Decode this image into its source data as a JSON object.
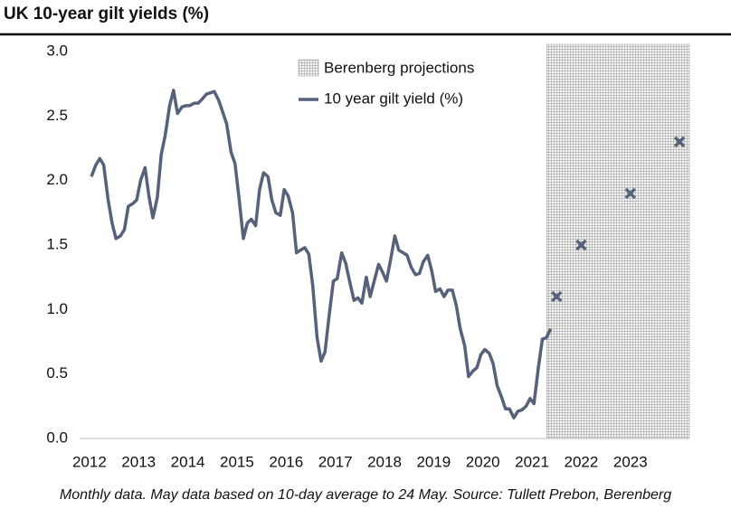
{
  "chart_data": {
    "type": "line",
    "title": "UK 10-year gilt yields (%)",
    "note": "Monthly data. May data based on 10-day average to 24 May. Source: Tullett Prebon, Berenberg",
    "xlim": [
      2011.8,
      2024.2
    ],
    "xticks": [
      2012,
      2013,
      2014,
      2015,
      2016,
      2017,
      2018,
      2019,
      2020,
      2021,
      2022,
      2023
    ],
    "ylim": [
      0,
      3
    ],
    "yticks": [
      {
        "value": 0,
        "label": "0.0"
      },
      0.5,
      {
        "value": 1,
        "label": "1.0"
      },
      1.5,
      {
        "value": 2,
        "label": "2.0"
      },
      2.5,
      {
        "value": 3,
        "label": "3.0"
      }
    ],
    "grid": false,
    "legend": "top",
    "projection_region": {
      "name": "Berenberg projections",
      "start": 2021.3,
      "color": "#9a9a9a"
    },
    "series": [
      {
        "name": "10 year gilt yield (%)",
        "color": "#56627a",
        "x": [
          2012.04,
          2012.13,
          2012.21,
          2012.29,
          2012.38,
          2012.46,
          2012.54,
          2012.63,
          2012.71,
          2012.79,
          2012.88,
          2012.96,
          2013.04,
          2013.13,
          2013.21,
          2013.29,
          2013.38,
          2013.46,
          2013.54,
          2013.63,
          2013.71,
          2013.79,
          2013.88,
          2013.96,
          2014.04,
          2014.13,
          2014.21,
          2014.29,
          2014.38,
          2014.46,
          2014.54,
          2014.63,
          2014.71,
          2014.79,
          2014.88,
          2014.96,
          2015.04,
          2015.13,
          2015.21,
          2015.29,
          2015.38,
          2015.46,
          2015.54,
          2015.63,
          2015.71,
          2015.79,
          2015.88,
          2015.96,
          2016.04,
          2016.13,
          2016.21,
          2016.29,
          2016.38,
          2016.46,
          2016.54,
          2016.63,
          2016.71,
          2016.79,
          2016.88,
          2016.96,
          2017.04,
          2017.13,
          2017.21,
          2017.29,
          2017.38,
          2017.46,
          2017.54,
          2017.63,
          2017.71,
          2017.79,
          2017.88,
          2017.96,
          2018.04,
          2018.13,
          2018.21,
          2018.29,
          2018.38,
          2018.46,
          2018.54,
          2018.63,
          2018.71,
          2018.79,
          2018.88,
          2018.96,
          2019.04,
          2019.13,
          2019.21,
          2019.29,
          2019.38,
          2019.46,
          2019.54,
          2019.63,
          2019.71,
          2019.79,
          2019.88,
          2019.96,
          2020.04,
          2020.13,
          2020.21,
          2020.29,
          2020.38,
          2020.46,
          2020.54,
          2020.63,
          2020.71,
          2020.79,
          2020.88,
          2020.96,
          2021.04,
          2021.13,
          2021.21,
          2021.29,
          2021.38
        ],
        "values": [
          2.03,
          2.12,
          2.17,
          2.12,
          1.85,
          1.67,
          1.55,
          1.57,
          1.62,
          1.8,
          1.82,
          1.85,
          2.0,
          2.1,
          1.88,
          1.71,
          1.87,
          2.2,
          2.35,
          2.58,
          2.7,
          2.52,
          2.57,
          2.58,
          2.58,
          2.6,
          2.6,
          2.63,
          2.67,
          2.68,
          2.69,
          2.62,
          2.53,
          2.44,
          2.22,
          2.13,
          1.87,
          1.55,
          1.67,
          1.7,
          1.65,
          1.93,
          2.06,
          2.03,
          1.85,
          1.75,
          1.73,
          1.93,
          1.88,
          1.75,
          1.44,
          1.46,
          1.48,
          1.43,
          1.19,
          0.78,
          0.6,
          0.67,
          0.97,
          1.22,
          1.24,
          1.44,
          1.36,
          1.22,
          1.07,
          1.09,
          1.05,
          1.25,
          1.1,
          1.22,
          1.35,
          1.29,
          1.22,
          1.4,
          1.57,
          1.46,
          1.44,
          1.42,
          1.33,
          1.27,
          1.28,
          1.37,
          1.42,
          1.3,
          1.14,
          1.16,
          1.1,
          1.15,
          1.15,
          1.03,
          0.85,
          0.72,
          0.48,
          0.52,
          0.55,
          0.65,
          0.69,
          0.66,
          0.58,
          0.41,
          0.32,
          0.23,
          0.23,
          0.16,
          0.21,
          0.22,
          0.25,
          0.31,
          0.27,
          0.55,
          0.77,
          0.78,
          0.85
        ]
      }
    ],
    "projections": {
      "x": [
        2021.5,
        2022.0,
        2023.0,
        2024.0
      ],
      "values": [
        1.1,
        1.5,
        1.9,
        2.3
      ],
      "color": "#56627a"
    }
  }
}
